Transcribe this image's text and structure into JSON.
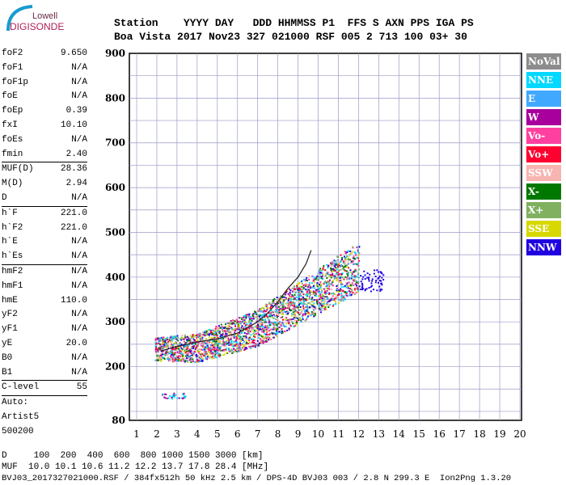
{
  "logo": {
    "line1": "Lowell",
    "line2": "DIGISONDE"
  },
  "header": {
    "labels": "Station    YYYY DAY   DDD HHMMSS P1  FFS S AXN PPS IGA PS",
    "values": "Boa Vista 2017 Nov23 327 021000 RSF 005 2 713 100 03+ 30"
  },
  "params": [
    {
      "k": "foF2",
      "v": "9.650"
    },
    {
      "k": "foF1",
      "v": "N/A"
    },
    {
      "k": "foF1p",
      "v": "N/A"
    },
    {
      "k": "foE",
      "v": "N/A"
    },
    {
      "k": "foEp",
      "v": "0.39"
    },
    {
      "k": "fxI",
      "v": "10.10"
    },
    {
      "k": "foEs",
      "v": "N/A"
    },
    {
      "k": "fmin",
      "v": "2.40"
    },
    {
      "k": "MUF(D)",
      "v": "28.36",
      "div": true
    },
    {
      "k": "M(D)",
      "v": "2.94"
    },
    {
      "k": "D",
      "v": "N/A"
    },
    {
      "k": "h`F",
      "v": "221.0",
      "div": true
    },
    {
      "k": "h`F2",
      "v": "221.0"
    },
    {
      "k": "h`E",
      "v": "N/A"
    },
    {
      "k": "h`Es",
      "v": "N/A"
    },
    {
      "k": "hmF2",
      "v": "N/A",
      "div": true
    },
    {
      "k": "hmF1",
      "v": "N/A"
    },
    {
      "k": "hmE",
      "v": "110.0"
    },
    {
      "k": "yF2",
      "v": "N/A"
    },
    {
      "k": "yF1",
      "v": "N/A"
    },
    {
      "k": "yE",
      "v": "20.0"
    },
    {
      "k": "B0",
      "v": "N/A"
    },
    {
      "k": "B1",
      "v": "N/A"
    },
    {
      "k": "C-level",
      "v": "55",
      "div": true
    },
    {
      "k": "Auto:",
      "v": "",
      "div": true
    },
    {
      "k": "Artist5",
      "v": ""
    },
    {
      "k": "500200",
      "v": ""
    }
  ],
  "legend": [
    {
      "label": "NoVal",
      "color": "#8c8c8c"
    },
    {
      "label": "NNE",
      "color": "#00d8ff"
    },
    {
      "label": "E",
      "color": "#40a8ff"
    },
    {
      "label": "W",
      "color": "#a8009c"
    },
    {
      "label": "Vo-",
      "color": "#ff40a0"
    },
    {
      "label": "Vo+",
      "color": "#ff0030"
    },
    {
      "label": "SSW",
      "color": "#f8b4b0"
    },
    {
      "label": "X-",
      "color": "#007800"
    },
    {
      "label": "X+",
      "color": "#80b060"
    },
    {
      "label": "SSE",
      "color": "#d8d800"
    },
    {
      "label": "NNW",
      "color": "#2000e0"
    }
  ],
  "footer": {
    "d_row": "D     100  200  400  600  800 1000 1500 3000 [km]",
    "muf_row": "MUF  10.0 10.1 10.6 11.2 12.2 13.7 17.8 28.4 [MHz]",
    "file_row": "BVJ03_2017327021000.RSF / 384fx512h 50 kHz 2.5 km / DPS-4D BVJ03 003 / 2.8 N 299.3 E  Ion2Png 1.3.20"
  },
  "chart_data": {
    "type": "scatter",
    "xlabel": "",
    "ylabel": "",
    "xlim": [
      0.6,
      20
    ],
    "ylim": [
      80,
      900
    ],
    "xticks": [
      1,
      2,
      3,
      4,
      5,
      6,
      7,
      8,
      9,
      10,
      11,
      12,
      13,
      14,
      15,
      16,
      17,
      18,
      19,
      20
    ],
    "yticks": [
      80,
      200,
      300,
      400,
      500,
      600,
      700,
      800,
      900
    ],
    "grid": true,
    "legend_position": "right",
    "trace_o": [
      [
        2.2,
        235
      ],
      [
        3,
        245
      ],
      [
        4,
        255
      ],
      [
        5,
        262
      ],
      [
        6,
        275
      ],
      [
        7,
        300
      ],
      [
        7.5,
        320
      ],
      [
        8,
        345
      ],
      [
        8.5,
        375
      ],
      [
        9,
        400
      ],
      [
        9.4,
        430
      ],
      [
        9.65,
        460
      ]
    ],
    "cloud": {
      "f_range": [
        1.9,
        12
      ],
      "h_min": 230,
      "h_max": 450
    }
  }
}
